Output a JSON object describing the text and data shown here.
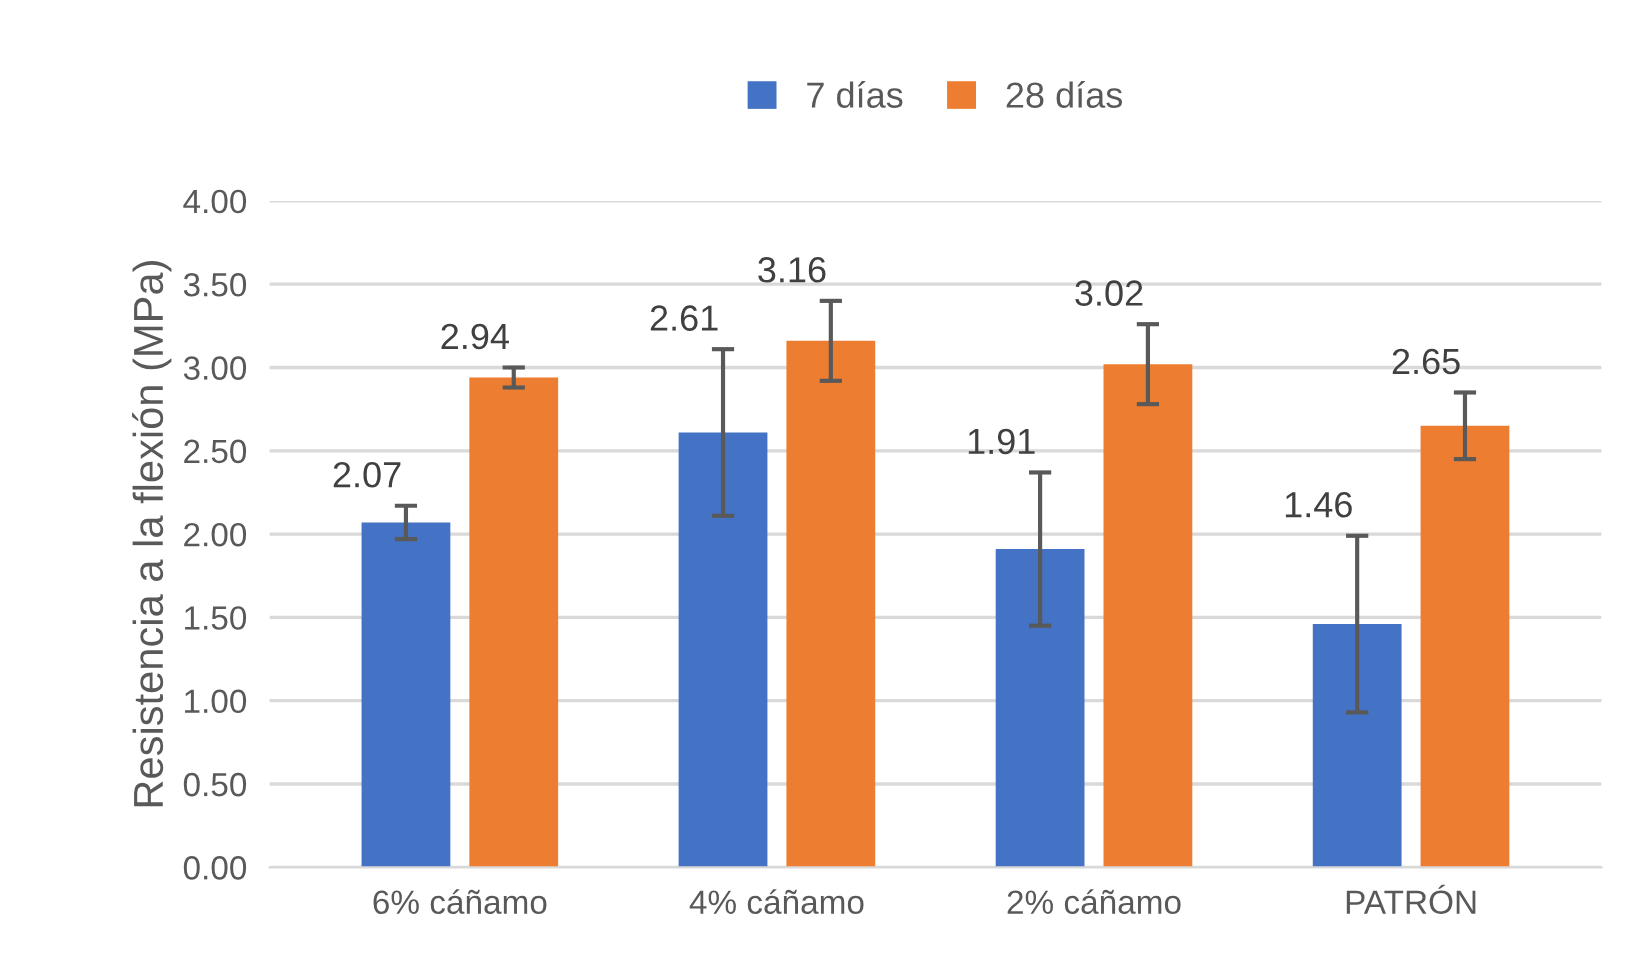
{
  "chart_data": {
    "type": "bar",
    "ylabel": "Resistencia a la flexión (MPa)",
    "categories": [
      "6% cáñamo",
      "4% cáñamo",
      "2% cáñamo",
      "PATRÓN"
    ],
    "series": [
      {
        "name": "7 días",
        "color": "#4472c4",
        "values": [
          2.07,
          2.61,
          1.91,
          1.46
        ],
        "errors": [
          0.1,
          0.5,
          0.46,
          0.53
        ]
      },
      {
        "name": "28 días",
        "color": "#ed7d31",
        "values": [
          2.94,
          3.16,
          3.02,
          2.65
        ],
        "errors": [
          0.06,
          0.24,
          0.24,
          0.2
        ]
      }
    ],
    "ylim": [
      0,
      4
    ],
    "yticks": [
      {
        "value": 0,
        "label": "0.00"
      },
      {
        "value": 0.5,
        "label": "0.50"
      },
      {
        "value": 1,
        "label": "1.00"
      },
      {
        "value": 1.5,
        "label": "1.50"
      },
      {
        "value": 2,
        "label": "2.00"
      },
      {
        "value": 2.5,
        "label": "2.50"
      },
      {
        "value": 3,
        "label": "3.00"
      },
      {
        "value": 3.5,
        "label": "3.50"
      },
      {
        "value": 4,
        "label": "4.00"
      }
    ],
    "grid": "y",
    "legend": "top",
    "data_labels": true
  }
}
